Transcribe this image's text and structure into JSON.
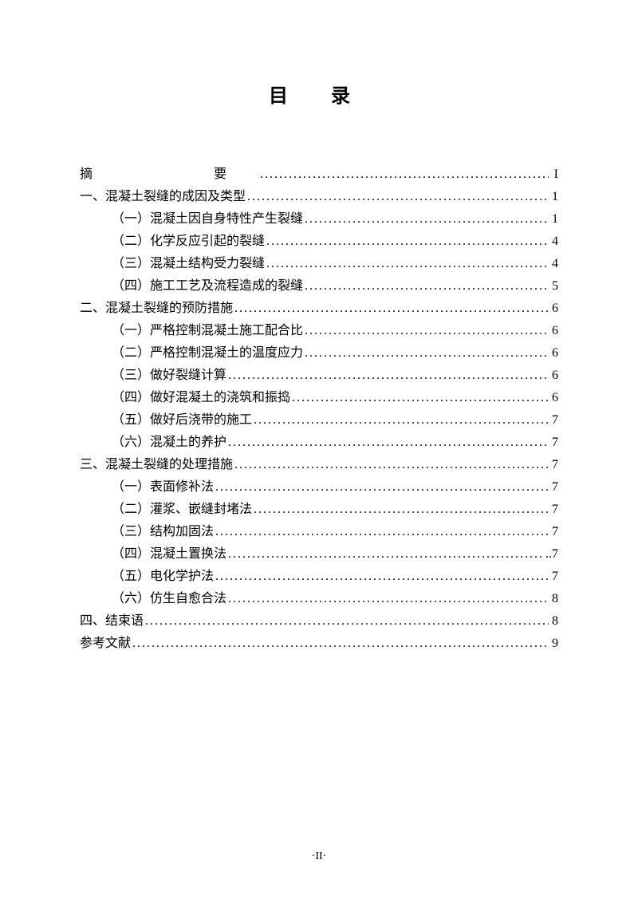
{
  "title": "目  录",
  "entries": [
    {
      "indent": 0,
      "label": "摘　　要",
      "page": "I",
      "labelClass": "abstract-label"
    },
    {
      "indent": 0,
      "label": "一、混凝土裂缝的成因及类型",
      "page": "1"
    },
    {
      "indent": 1,
      "label": "（一）混凝土因自身特性产生裂缝",
      "page": "1"
    },
    {
      "indent": 1,
      "label": "（二）化学反应引起的裂缝",
      "page": "4"
    },
    {
      "indent": 1,
      "label": "（三）混凝土结构受力裂缝",
      "page": "4"
    },
    {
      "indent": 1,
      "label": "（四）施工工艺及流程造成的裂缝",
      "page": "5"
    },
    {
      "indent": 0,
      "label": "二、混凝土裂缝的预防措施",
      "page": "6"
    },
    {
      "indent": 1,
      "label": "（一）严格控制混凝土施工配合比",
      "page": "6"
    },
    {
      "indent": 1,
      "label": "（二）严格控制混凝土的温度应力",
      "page": "6"
    },
    {
      "indent": 1,
      "label": "（三）做好裂缝计算",
      "page": "6"
    },
    {
      "indent": 1,
      "label": "（四）做好混凝土的浇筑和振捣",
      "page": "6"
    },
    {
      "indent": 1,
      "label": "（五）做好后浇带的施工",
      "page": "7"
    },
    {
      "indent": 1,
      "label": "（六）混凝土的养护",
      "page": " 7"
    },
    {
      "indent": 0,
      "label": "三、混凝土裂缝的处理措施",
      "page": "7"
    },
    {
      "indent": 1,
      "label": "（一）表面修补法",
      "page": "7"
    },
    {
      "indent": 1,
      "label": "（二）灌浆、嵌缝封堵法",
      "page": "7"
    },
    {
      "indent": 1,
      "label": "（三）结构加固法",
      "page": "7"
    },
    {
      "indent": 1,
      "label": "（四）混凝土置换法",
      "page": "..7"
    },
    {
      "indent": 1,
      "label": "（五）电化学护法",
      "page": "7"
    },
    {
      "indent": 1,
      "label": "（六）仿生自愈合法",
      "page": "8"
    },
    {
      "indent": 0,
      "label": "四、结束语",
      "page": "8"
    },
    {
      "indent": 0,
      "label": "参考文献",
      "page": "9"
    }
  ],
  "footer": "·II·"
}
